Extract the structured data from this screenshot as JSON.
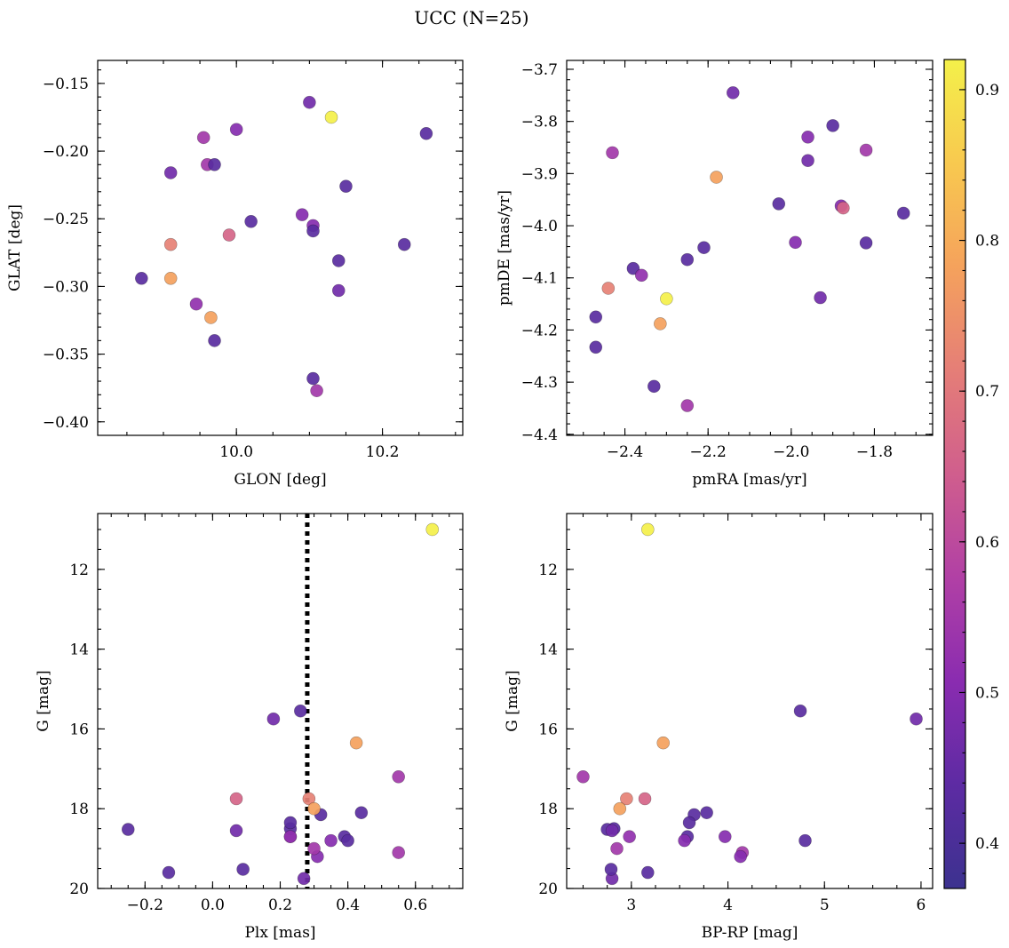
{
  "title": "UCC (N=25)",
  "colorbar": {
    "range": [
      0.37,
      0.92
    ],
    "ticks": [
      0.4,
      0.5,
      0.6,
      0.7,
      0.8,
      0.9
    ],
    "tick_labels": [
      "0.4",
      "0.5",
      "0.6",
      "0.7",
      "0.8",
      "0.9"
    ],
    "colormap": "plasma",
    "stops": [
      "#3c328f",
      "#5d2ba3",
      "#8a2cb0",
      "#b140a5",
      "#d05e8d",
      "#e57e77",
      "#f5a25c",
      "#f8c94f",
      "#f4f04a"
    ]
  },
  "stars": [
    {
      "glon": 10.1,
      "glat": -0.164,
      "pmra": -2.14,
      "pmde": -3.745,
      "plx": 0.27,
      "g": 19.75,
      "bprp": 2.8,
      "p": 0.47
    },
    {
      "glon": 10.13,
      "glat": -0.175,
      "pmra": -2.3,
      "pmde": -4.14,
      "plx": 0.65,
      "g": 11.0,
      "bprp": 3.17,
      "p": 0.92
    },
    {
      "glon": 10.26,
      "glat": -0.187,
      "pmra": -1.9,
      "pmde": -3.808,
      "plx": 0.39,
      "g": 18.7,
      "bprp": 3.58,
      "p": 0.43
    },
    {
      "glon": 9.955,
      "glat": -0.19,
      "pmra": -2.43,
      "pmde": -3.86,
      "plx": 0.55,
      "g": 19.1,
      "bprp": 4.15,
      "p": 0.55
    },
    {
      "glon": 10.0,
      "glat": -0.184,
      "pmra": -1.96,
      "pmde": -3.83,
      "plx": 0.23,
      "g": 18.7,
      "bprp": 3.97,
      "p": 0.5
    },
    {
      "glon": 9.91,
      "glat": -0.216,
      "pmra": -1.96,
      "pmde": -3.875,
      "plx": 0.18,
      "g": 15.75,
      "bprp": 5.95,
      "p": 0.47
    },
    {
      "glon": 9.96,
      "glat": -0.21,
      "pmra": -1.82,
      "pmde": -3.855,
      "plx": 0.55,
      "g": 17.2,
      "bprp": 2.5,
      "p": 0.55
    },
    {
      "glon": 9.97,
      "glat": -0.21,
      "pmra": -2.03,
      "pmde": -3.958,
      "plx": 0.32,
      "g": 18.15,
      "bprp": 3.65,
      "p": 0.43
    },
    {
      "glon": 10.15,
      "glat": -0.226,
      "pmra": -1.73,
      "pmde": -3.976,
      "plx": 0.23,
      "g": 18.5,
      "bprp": 2.82,
      "p": 0.43
    },
    {
      "glon": 10.02,
      "glat": -0.252,
      "pmra": -2.21,
      "pmde": -4.042,
      "plx": 0.4,
      "g": 18.8,
      "bprp": 4.8,
      "p": 0.43
    },
    {
      "glon": 10.09,
      "glat": -0.247,
      "pmra": -1.99,
      "pmde": -4.032,
      "plx": 0.35,
      "g": 18.8,
      "bprp": 3.55,
      "p": 0.5
    },
    {
      "glon": 10.105,
      "glat": -0.255,
      "pmra": -1.88,
      "pmde": -3.962,
      "plx": 0.31,
      "g": 19.2,
      "bprp": 4.13,
      "p": 0.5
    },
    {
      "glon": 10.105,
      "glat": -0.259,
      "pmra": -2.25,
      "pmde": -4.065,
      "plx": 0.26,
      "g": 15.55,
      "bprp": 4.75,
      "p": 0.43
    },
    {
      "glon": 9.99,
      "glat": -0.262,
      "pmra": -1.875,
      "pmde": -3.966,
      "plx": 0.07,
      "g": 17.75,
      "bprp": 3.14,
      "p": 0.66
    },
    {
      "glon": 9.91,
      "glat": -0.269,
      "pmra": -2.44,
      "pmde": -4.12,
      "plx": 0.285,
      "g": 17.75,
      "bprp": 2.95,
      "p": 0.72
    },
    {
      "glon": 10.23,
      "glat": -0.269,
      "pmra": -1.82,
      "pmde": -4.033,
      "plx": 0.09,
      "g": 19.52,
      "bprp": 2.79,
      "p": 0.43
    },
    {
      "glon": 10.14,
      "glat": -0.281,
      "pmra": -2.38,
      "pmde": -4.082,
      "plx": 0.23,
      "g": 18.35,
      "bprp": 3.6,
      "p": 0.43
    },
    {
      "glon": 9.87,
      "glat": -0.294,
      "pmra": -2.47,
      "pmde": -4.175,
      "plx": -0.25,
      "g": 18.52,
      "bprp": 2.75,
      "p": 0.43
    },
    {
      "glon": 9.91,
      "glat": -0.294,
      "pmra": -2.18,
      "pmde": -3.907,
      "plx": 0.3,
      "g": 18.0,
      "bprp": 2.88,
      "p": 0.78
    },
    {
      "glon": 10.14,
      "glat": -0.303,
      "pmra": -1.93,
      "pmde": -4.138,
      "plx": 0.07,
      "g": 18.55,
      "bprp": 2.8,
      "p": 0.47
    },
    {
      "glon": 9.945,
      "glat": -0.313,
      "pmra": -2.36,
      "pmde": -4.095,
      "plx": 0.23,
      "g": 18.7,
      "bprp": 2.98,
      "p": 0.52
    },
    {
      "glon": 9.965,
      "glat": -0.323,
      "pmra": -2.315,
      "pmde": -4.188,
      "plx": 0.425,
      "g": 16.35,
      "bprp": 3.33,
      "p": 0.78
    },
    {
      "glon": 9.97,
      "glat": -0.34,
      "pmra": -2.33,
      "pmde": -4.308,
      "plx": -0.13,
      "g": 19.6,
      "bprp": 3.17,
      "p": 0.43
    },
    {
      "glon": 10.105,
      "glat": -0.368,
      "pmra": -2.47,
      "pmde": -4.233,
      "plx": 0.44,
      "g": 18.1,
      "bprp": 3.78,
      "p": 0.43
    },
    {
      "glon": 10.11,
      "glat": -0.377,
      "pmra": -2.25,
      "pmde": -4.345,
      "plx": 0.3,
      "g": 19.0,
      "bprp": 2.85,
      "p": 0.55
    }
  ],
  "chart_data": [
    {
      "type": "scatter",
      "title": "",
      "x_field": "glon",
      "y_field": "glat",
      "xlabel": "GLON [deg]",
      "ylabel": "GLAT [deg]",
      "xlim": [
        9.81,
        10.31
      ],
      "ylim": [
        -0.41,
        -0.133
      ],
      "xticks": [
        10.0,
        10.2
      ],
      "xtick_labels": [
        "10.0",
        "10.2"
      ],
      "yticks": [
        -0.4,
        -0.35,
        -0.3,
        -0.25,
        -0.2,
        -0.15
      ],
      "ytick_labels": [
        "−0.40",
        "−0.35",
        "−0.30",
        "−0.25",
        "−0.20",
        "−0.15"
      ],
      "y_inverted": false
    },
    {
      "type": "scatter",
      "title": "",
      "x_field": "pmra",
      "y_field": "pmde",
      "xlabel": "pmRA [mas/yr]",
      "ylabel": "pmDE [mas/yr]",
      "xlim": [
        -2.54,
        -1.66
      ],
      "ylim": [
        -4.402,
        -3.683
      ],
      "xticks": [
        -2.4,
        -2.2,
        -2.0,
        -1.8
      ],
      "xtick_labels": [
        "−2.4",
        "−2.2",
        "−2.0",
        "−1.8"
      ],
      "yticks": [
        -4.4,
        -4.3,
        -4.2,
        -4.1,
        -4.0,
        -3.9,
        -3.8,
        -3.7
      ],
      "ytick_labels": [
        "−4.4",
        "−4.3",
        "−4.2",
        "−4.1",
        "−4.0",
        "−3.9",
        "−3.8",
        "−3.7"
      ],
      "y_inverted": false
    },
    {
      "type": "scatter",
      "title": "",
      "x_field": "plx",
      "y_field": "g",
      "xlabel": "Plx [mas]",
      "ylabel": "G [mag]",
      "xlim": [
        -0.34,
        0.74
      ],
      "ylim": [
        20.0,
        10.6
      ],
      "xticks": [
        -0.2,
        0.0,
        0.2,
        0.4,
        0.6
      ],
      "xtick_labels": [
        "−0.2",
        "0.0",
        "0.2",
        "0.4",
        "0.6"
      ],
      "yticks": [
        12,
        14,
        16,
        18,
        20
      ],
      "ytick_labels": [
        "12",
        "14",
        "16",
        "18",
        "20"
      ],
      "y_inverted": true,
      "vline": {
        "x": 0.28,
        "style": "dotted"
      }
    },
    {
      "type": "scatter",
      "title": "",
      "x_field": "bprp",
      "y_field": "g",
      "xlabel": "BP-RP [mag]",
      "ylabel": "G [mag]",
      "xlim": [
        2.33,
        6.12
      ],
      "ylim": [
        20.0,
        10.6
      ],
      "xticks": [
        3,
        4,
        5,
        6
      ],
      "xtick_labels": [
        "3",
        "4",
        "5",
        "6"
      ],
      "yticks": [
        12,
        14,
        16,
        18,
        20
      ],
      "ytick_labels": [
        "12",
        "14",
        "16",
        "18",
        "20"
      ],
      "y_inverted": true
    }
  ]
}
